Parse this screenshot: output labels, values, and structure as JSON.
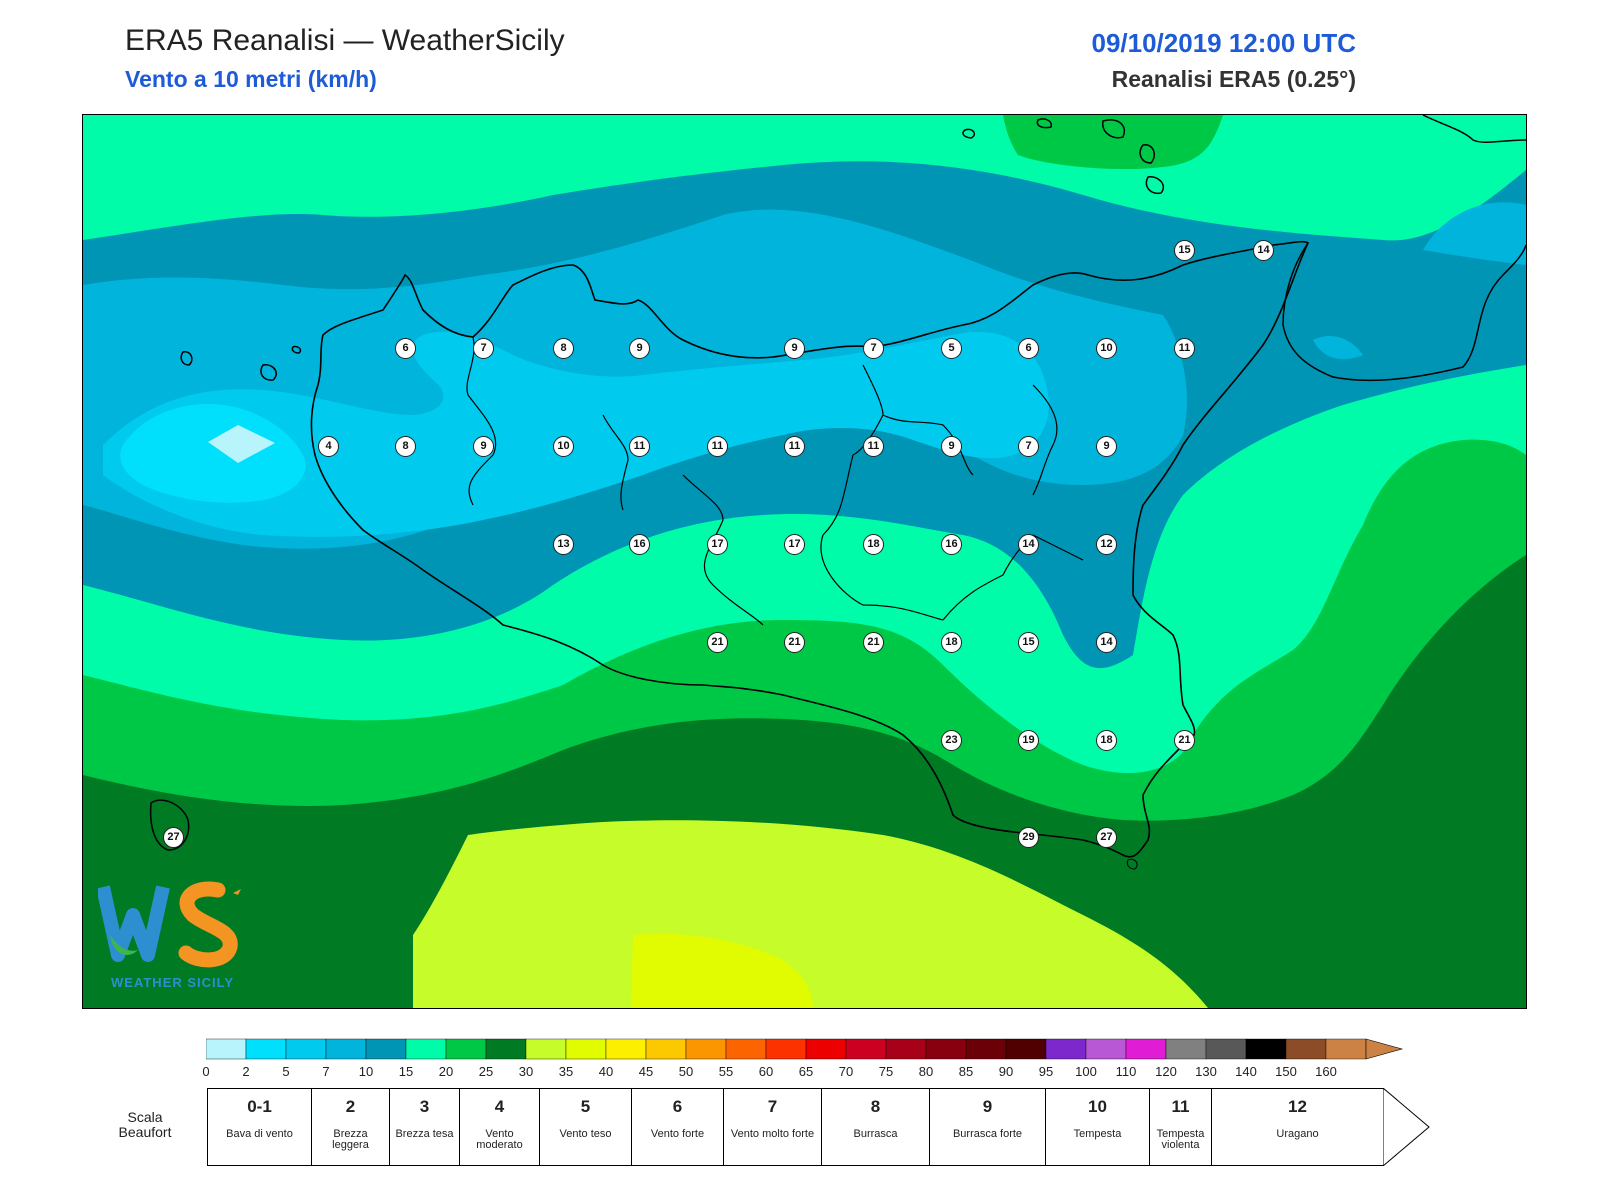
{
  "header": {
    "title": "ERA5 Reanalisi — WeatherSicily",
    "subtitle": "Vento a 10 metri (km/h)",
    "datetime": "09/10/2019 12:00 UTC",
    "model": "Reanalisi ERA5 (0.25°)"
  },
  "map": {
    "region": "Sicilia",
    "station_values": [
      15,
      14,
      6,
      7,
      8,
      9,
      9,
      7,
      5,
      6,
      10,
      11,
      4,
      8,
      9,
      10,
      11,
      11,
      11,
      11,
      9,
      7,
      9,
      13,
      16,
      17,
      17,
      18,
      16,
      14,
      12,
      21,
      21,
      21,
      18,
      15,
      14,
      23,
      19,
      18,
      21,
      27,
      29,
      27
    ]
  },
  "logo": {
    "text": "WEATHER SICILY"
  },
  "legend": {
    "unit": "km/h",
    "ticks": [
      "0",
      "2",
      "5",
      "7",
      "10",
      "15",
      "20",
      "25",
      "30",
      "35",
      "40",
      "45",
      "50",
      "55",
      "60",
      "65",
      "70",
      "75",
      "80",
      "85",
      "90",
      "95",
      "100",
      "110",
      "120",
      "130",
      "140",
      "150",
      "160"
    ],
    "colors": [
      "#b8f4fc",
      "#00e0fc",
      "#00cbee",
      "#00b4dc",
      "#0095b5",
      "#00fca9",
      "#00c847",
      "#007a23",
      "#c5fc29",
      "#e1fc00",
      "#fcf000",
      "#fcc800",
      "#fc9600",
      "#fc6400",
      "#fc3200",
      "#ec0000",
      "#cc0020",
      "#a80018",
      "#880010",
      "#6c0008",
      "#500000",
      "#7c28cc",
      "#b858d4",
      "#e01cd4",
      "#808080",
      "#585858",
      "#000000",
      "#8c4c28",
      "#cc8244"
    ]
  },
  "beaufort": {
    "label": "Scala Beaufort",
    "cells": [
      {
        "num": "0-1",
        "desc": "Bava di vento"
      },
      {
        "num": "2",
        "desc": "Brezza leggera"
      },
      {
        "num": "3",
        "desc": "Brezza tesa"
      },
      {
        "num": "4",
        "desc": "Vento moderato"
      },
      {
        "num": "5",
        "desc": "Vento teso"
      },
      {
        "num": "6",
        "desc": "Vento forte"
      },
      {
        "num": "7",
        "desc": "Vento molto forte"
      },
      {
        "num": "8",
        "desc": "Burrasca"
      },
      {
        "num": "9",
        "desc": "Burrasca forte"
      },
      {
        "num": "10",
        "desc": "Tempesta"
      },
      {
        "num": "11",
        "desc": "Tempesta violenta"
      },
      {
        "num": "12",
        "desc": "Uragano"
      }
    ]
  }
}
